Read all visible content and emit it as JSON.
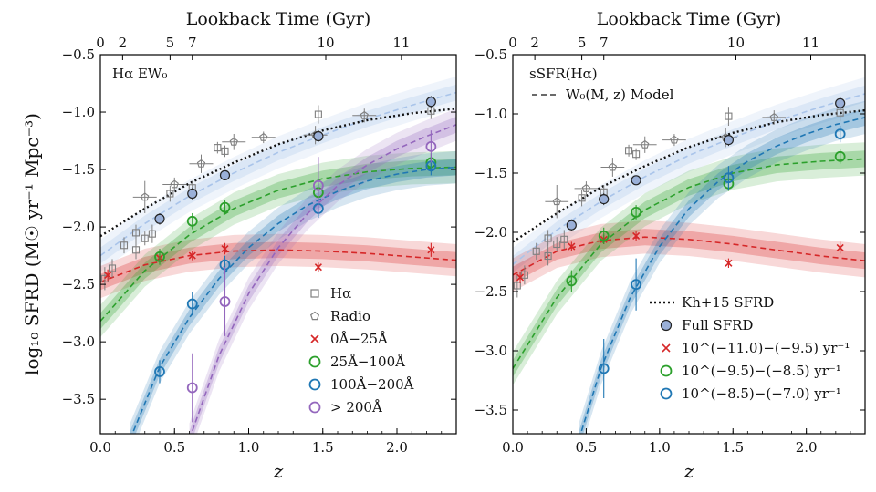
{
  "figure": {
    "y_axis_label": "log₁₀ SFRD (M☉ yr⁻¹ Mpc⁻³)",
    "x_axis_label": "z",
    "top_axis_label": "Lookback Time (Gyr)",
    "top_ticks": [
      {
        "label": "0",
        "z": 0.0
      },
      {
        "label": "2",
        "z": 0.15
      },
      {
        "label": "5",
        "z": 0.47
      },
      {
        "label": "7",
        "z": 0.62
      },
      {
        "label": "10",
        "z": 1.52
      },
      {
        "label": "11",
        "z": 2.03
      }
    ],
    "x_ticks": [
      "0.0",
      "0.5",
      "1.0",
      "1.5",
      "2.0"
    ],
    "x_tick_values": [
      0.0,
      0.5,
      1.0,
      1.5,
      2.0
    ],
    "y_ticks": [
      "−3.5",
      "−3.0",
      "−2.5",
      "−2.0",
      "−1.5",
      "−1.0",
      "−0.5"
    ],
    "y_tick_values": [
      -3.5,
      -3.0,
      -2.5,
      -2.0,
      -1.5,
      -1.0,
      -0.5
    ],
    "colors": {
      "red": "#d62728",
      "green": "#2ca02c",
      "blue": "#1f77b4",
      "purple": "#9467bd",
      "gray": "#7f7f7f",
      "full_fill": "#9ab0d8",
      "model_light": "#a9c4ea"
    }
  },
  "chart_data": [
    {
      "type": "line",
      "panel": "left",
      "corner_label": "Hα EW₀",
      "xlim": [
        0.0,
        2.4
      ],
      "ylim": [
        -3.8,
        -0.5
      ],
      "legend_position": "lower-right",
      "legend": [
        {
          "marker": "square",
          "label": "Hα",
          "color": "#7f7f7f"
        },
        {
          "marker": "pentagon",
          "label": "Radio",
          "color": "#7f7f7f"
        },
        {
          "marker": "x",
          "label": "0Å−25Å",
          "color": "#d62728"
        },
        {
          "marker": "circle",
          "label": "25Å−100Å",
          "color": "#2ca02c"
        },
        {
          "marker": "circle",
          "label": "100Å−200Å",
          "color": "#1f77b4"
        },
        {
          "marker": "circle",
          "label": "> 200Å",
          "color": "#9467bd"
        }
      ],
      "reference_curves": {
        "kh15": {
          "x": [
            0.0,
            0.3,
            0.6,
            0.9,
            1.2,
            1.5,
            1.8,
            2.1,
            2.4
          ],
          "y": [
            -2.08,
            -1.84,
            -1.62,
            -1.44,
            -1.28,
            -1.16,
            -1.07,
            -1.01,
            -0.97
          ]
        },
        "full_model": {
          "x": [
            0.0,
            0.3,
            0.6,
            0.9,
            1.2,
            1.5,
            1.8,
            2.1,
            2.4
          ],
          "y": [
            -2.25,
            -1.97,
            -1.73,
            -1.53,
            -1.35,
            -1.2,
            -1.06,
            -0.94,
            -0.83
          ]
        }
      },
      "series": [
        {
          "name": "0Å−25Å",
          "marker": "x",
          "color": "#d62728",
          "points": [
            {
              "x": 0.05,
              "y": -2.42,
              "err": 0.05
            },
            {
              "x": 0.4,
              "y": -2.27,
              "err": 0.05
            },
            {
              "x": 0.62,
              "y": -2.25,
              "err": 0.04
            },
            {
              "x": 0.84,
              "y": -2.19,
              "err": 0.05
            },
            {
              "x": 1.47,
              "y": -2.35,
              "err": 0.04
            },
            {
              "x": 2.23,
              "y": -2.2,
              "err": 0.06
            }
          ],
          "model": {
            "x": [
              0.0,
              0.3,
              0.6,
              0.9,
              1.2,
              1.5,
              1.8,
              2.1,
              2.4
            ],
            "y": [
              -2.48,
              -2.33,
              -2.25,
              -2.21,
              -2.2,
              -2.21,
              -2.23,
              -2.26,
              -2.29
            ]
          }
        },
        {
          "name": "25Å−100Å",
          "marker": "circle",
          "color": "#2ca02c",
          "points": [
            {
              "x": 0.4,
              "y": -2.26,
              "err": 0.07
            },
            {
              "x": 0.62,
              "y": -1.95,
              "err": 0.07
            },
            {
              "x": 0.84,
              "y": -1.83,
              "err": 0.06
            },
            {
              "x": 1.47,
              "y": -1.7,
              "err": 0.08
            },
            {
              "x": 2.23,
              "y": -1.44,
              "err": 0.08
            }
          ],
          "model": {
            "x": [
              0.0,
              0.3,
              0.6,
              0.9,
              1.2,
              1.5,
              1.8,
              2.1,
              2.4
            ],
            "y": [
              -2.82,
              -2.38,
              -2.07,
              -1.84,
              -1.68,
              -1.58,
              -1.52,
              -1.49,
              -1.48
            ]
          }
        },
        {
          "name": "100Å−200Å",
          "marker": "circle",
          "color": "#1f77b4",
          "points": [
            {
              "x": 0.4,
              "y": -3.26,
              "err": 0.1
            },
            {
              "x": 0.62,
              "y": -2.67,
              "err": 0.1
            },
            {
              "x": 0.84,
              "y": -2.33,
              "err": 0.08
            },
            {
              "x": 1.47,
              "y": -1.84,
              "err": 0.08
            },
            {
              "x": 2.23,
              "y": -1.47,
              "err": 0.08
            }
          ],
          "model": {
            "x": [
              0.2,
              0.4,
              0.6,
              0.8,
              1.0,
              1.2,
              1.4,
              1.6,
              1.8,
              2.0,
              2.2,
              2.4
            ],
            "y": [
              -3.85,
              -3.22,
              -2.79,
              -2.45,
              -2.18,
              -1.97,
              -1.81,
              -1.69,
              -1.6,
              -1.54,
              -1.5,
              -1.48
            ]
          }
        },
        {
          "name": "> 200Å",
          "marker": "circle",
          "color": "#9467bd",
          "points": [
            {
              "x": 0.62,
              "y": -3.4,
              "err": 0.3
            },
            {
              "x": 0.84,
              "y": -2.65,
              "err": 0.3
            },
            {
              "x": 1.47,
              "y": -1.64,
              "err": 0.25
            },
            {
              "x": 2.23,
              "y": -1.3,
              "err": 0.14
            }
          ],
          "model": {
            "x": [
              0.6,
              0.8,
              1.0,
              1.2,
              1.4,
              1.6,
              1.8,
              2.0,
              2.2,
              2.4
            ],
            "y": [
              -3.85,
              -3.12,
              -2.58,
              -2.18,
              -1.88,
              -1.64,
              -1.46,
              -1.32,
              -1.21,
              -1.11
            ]
          }
        }
      ],
      "full_sfrd": [
        {
          "x": 0.4,
          "y": -1.93,
          "err": 0.05
        },
        {
          "x": 0.62,
          "y": -1.71,
          "err": 0.05
        },
        {
          "x": 0.84,
          "y": -1.55,
          "err": 0.04
        },
        {
          "x": 1.47,
          "y": -1.21,
          "err": 0.05
        },
        {
          "x": 2.23,
          "y": -0.91,
          "err": 0.05
        }
      ]
    },
    {
      "type": "line",
      "panel": "right",
      "corner_label": "sSFR(Hα)",
      "xlim": [
        0.0,
        2.4
      ],
      "ylim": [
        -3.7,
        -0.5
      ],
      "legend_position": "lower-right",
      "model_legend": {
        "marker": "dashed-line",
        "label": "W₀(M, z) Model",
        "color": "#555555"
      },
      "legend": [
        {
          "marker": "dotted-line",
          "label": "Kh+15 SFRD",
          "color": "#111111"
        },
        {
          "marker": "filled-circle",
          "label": "Full SFRD",
          "color": "#9ab0d8"
        },
        {
          "marker": "x",
          "label": "10^(−11.0)−(−9.5) yr⁻¹",
          "color": "#d62728"
        },
        {
          "marker": "circle",
          "label": "10^(−9.5)−(−8.5) yr⁻¹",
          "color": "#2ca02c"
        },
        {
          "marker": "circle",
          "label": "10^(−8.5)−(−7.0) yr⁻¹",
          "color": "#1f77b4"
        }
      ],
      "reference_curves": {
        "kh15": {
          "x": [
            0.0,
            0.3,
            0.6,
            0.9,
            1.2,
            1.5,
            1.8,
            2.1,
            2.4
          ],
          "y": [
            -2.08,
            -1.84,
            -1.62,
            -1.44,
            -1.28,
            -1.16,
            -1.07,
            -1.01,
            -0.97
          ]
        },
        "full_model": {
          "x": [
            0.0,
            0.3,
            0.6,
            0.9,
            1.2,
            1.5,
            1.8,
            2.1,
            2.4
          ],
          "y": [
            -2.27,
            -1.98,
            -1.74,
            -1.53,
            -1.35,
            -1.2,
            -1.06,
            -0.94,
            -0.83
          ]
        }
      },
      "series": [
        {
          "name": "10^(−11.0)−(−9.5) yr⁻¹",
          "marker": "x",
          "color": "#d62728",
          "points": [
            {
              "x": 0.05,
              "y": -2.38,
              "err": 0.05
            },
            {
              "x": 0.4,
              "y": -2.12,
              "err": 0.04
            },
            {
              "x": 0.62,
              "y": -2.06,
              "err": 0.04
            },
            {
              "x": 0.84,
              "y": -2.03,
              "err": 0.04
            },
            {
              "x": 1.47,
              "y": -2.26,
              "err": 0.04
            },
            {
              "x": 2.23,
              "y": -2.13,
              "err": 0.05
            }
          ],
          "model": {
            "x": [
              0.0,
              0.3,
              0.6,
              0.9,
              1.2,
              1.5,
              1.8,
              2.1,
              2.4
            ],
            "y": [
              -2.36,
              -2.16,
              -2.07,
              -2.04,
              -2.06,
              -2.1,
              -2.15,
              -2.2,
              -2.24
            ]
          }
        },
        {
          "name": "10^(−9.5)−(−8.5) yr⁻¹",
          "marker": "circle",
          "color": "#2ca02c",
          "points": [
            {
              "x": 0.4,
              "y": -2.41,
              "err": 0.09
            },
            {
              "x": 0.62,
              "y": -2.03,
              "err": 0.07
            },
            {
              "x": 0.84,
              "y": -1.83,
              "err": 0.06
            },
            {
              "x": 1.47,
              "y": -1.59,
              "err": 0.06
            },
            {
              "x": 2.23,
              "y": -1.36,
              "err": 0.06
            }
          ],
          "model": {
            "x": [
              0.0,
              0.3,
              0.6,
              0.9,
              1.2,
              1.5,
              1.8,
              2.1,
              2.4
            ],
            "y": [
              -3.15,
              -2.55,
              -2.1,
              -1.81,
              -1.62,
              -1.5,
              -1.43,
              -1.4,
              -1.38
            ]
          }
        },
        {
          "name": "10^(−8.5)−(−7.0) yr⁻¹",
          "marker": "circle",
          "color": "#1f77b4",
          "points": [
            {
              "x": 0.62,
              "y": -3.15,
              "err": 0.25
            },
            {
              "x": 0.84,
              "y": -2.44,
              "err": 0.22
            },
            {
              "x": 1.47,
              "y": -1.54,
              "err": 0.1
            },
            {
              "x": 2.23,
              "y": -1.17,
              "err": 0.07
            }
          ],
          "model": {
            "x": [
              0.45,
              0.6,
              0.8,
              1.0,
              1.2,
              1.4,
              1.6,
              1.8,
              2.0,
              2.2,
              2.4
            ],
            "y": [
              -3.75,
              -3.15,
              -2.55,
              -2.12,
              -1.8,
              -1.57,
              -1.4,
              -1.27,
              -1.17,
              -1.09,
              -1.03
            ]
          }
        }
      ],
      "full_sfrd": [
        {
          "x": 0.4,
          "y": -1.94,
          "err": 0.05
        },
        {
          "x": 0.62,
          "y": -1.72,
          "err": 0.05
        },
        {
          "x": 0.84,
          "y": -1.56,
          "err": 0.04
        },
        {
          "x": 1.47,
          "y": -1.22,
          "err": 0.05
        },
        {
          "x": 2.23,
          "y": -0.91,
          "err": 0.05
        }
      ]
    }
  ],
  "compilation": {
    "halpha_squares": [
      {
        "x": 0.03,
        "y": -2.45,
        "err": 0.1
      },
      {
        "x": 0.08,
        "y": -2.36,
        "err": 0.08
      },
      {
        "x": 0.16,
        "y": -2.16,
        "err": 0.07
      },
      {
        "x": 0.24,
        "y": -2.05,
        "err": 0.07
      },
      {
        "x": 0.24,
        "y": -2.2,
        "err": 0.08
      },
      {
        "x": 0.3,
        "y": -2.1,
        "err": 0.06
      },
      {
        "x": 0.35,
        "y": -2.06,
        "err": 0.08
      },
      {
        "x": 0.47,
        "y": -1.71,
        "err": 0.07
      },
      {
        "x": 0.62,
        "y": -1.66,
        "err": 0.06
      },
      {
        "x": 0.79,
        "y": -1.31,
        "err": 0.05
      },
      {
        "x": 0.84,
        "y": -1.34,
        "err": 0.05
      },
      {
        "x": 1.47,
        "y": -1.02,
        "err": 0.08
      },
      {
        "x": 2.23,
        "y": -0.99,
        "err": 0.07
      }
    ],
    "radio_pentagons": [
      {
        "x": 0.3,
        "y": -1.74,
        "err": 0.14
      },
      {
        "x": 0.5,
        "y": -1.63,
        "err": 0.06
      },
      {
        "x": 0.68,
        "y": -1.45,
        "err": 0.08
      },
      {
        "x": 0.9,
        "y": -1.26,
        "err": 0.07
      },
      {
        "x": 1.1,
        "y": -1.22,
        "err": 0.05
      },
      {
        "x": 1.45,
        "y": -1.2,
        "err": 0.08
      },
      {
        "x": 1.78,
        "y": -1.03,
        "err": 0.06
      }
    ]
  }
}
